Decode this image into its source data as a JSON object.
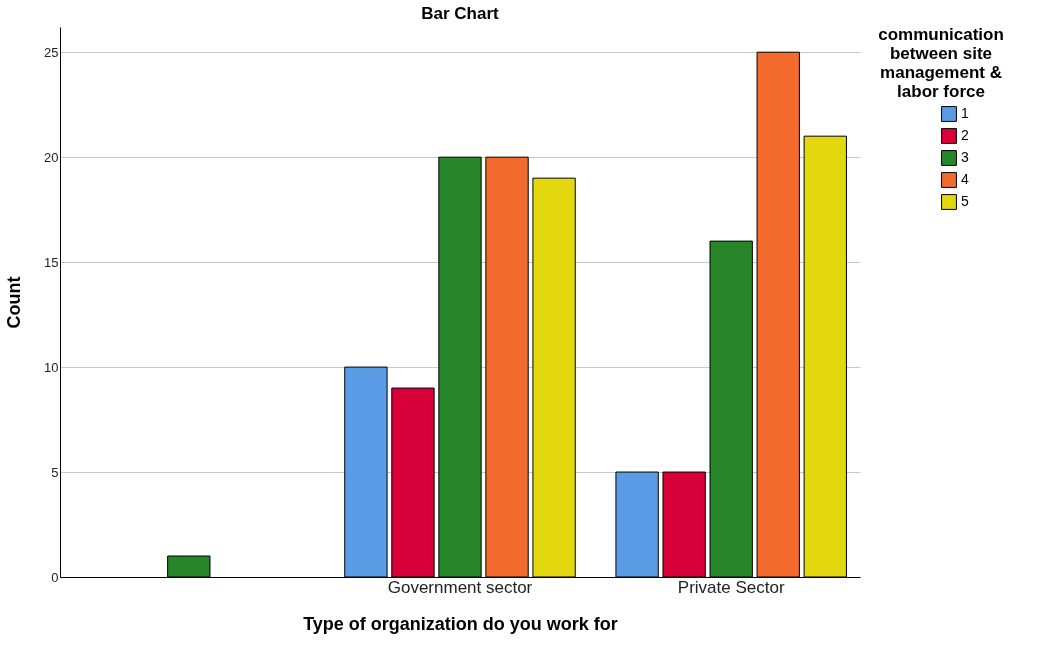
{
  "chart_data": {
    "type": "bar",
    "title": "Bar Chart",
    "xlabel": "Type of organization do you work for",
    "ylabel": "Count",
    "legend_title": "communication between site management & labor force",
    "categories": [
      null,
      "Government sector",
      "Private Sector"
    ],
    "series": [
      {
        "name": "1",
        "color": "#5a9be6",
        "values": [
          null,
          10,
          5
        ]
      },
      {
        "name": "2",
        "color": "#d9003a",
        "values": [
          null,
          9,
          5
        ]
      },
      {
        "name": "3",
        "color": "#28862a",
        "values": [
          1,
          20,
          16
        ]
      },
      {
        "name": "4",
        "color": "#f26b2c",
        "values": [
          null,
          20,
          25
        ]
      },
      {
        "name": "5",
        "color": "#e3d70e",
        "values": [
          null,
          19,
          21
        ]
      }
    ],
    "ylim": [
      0,
      26.2
    ],
    "yticks": [
      0,
      5,
      10,
      15,
      20,
      25
    ],
    "grid": "y",
    "legend": "top right"
  }
}
